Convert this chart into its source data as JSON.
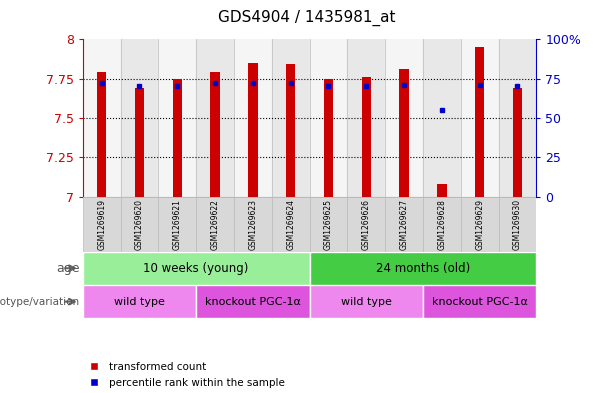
{
  "title": "GDS4904 / 1435981_at",
  "samples": [
    "GSM1269619",
    "GSM1269620",
    "GSM1269621",
    "GSM1269622",
    "GSM1269623",
    "GSM1269624",
    "GSM1269625",
    "GSM1269626",
    "GSM1269627",
    "GSM1269628",
    "GSM1269629",
    "GSM1269630"
  ],
  "red_values": [
    7.79,
    7.69,
    7.75,
    7.79,
    7.85,
    7.84,
    7.75,
    7.76,
    7.81,
    7.08,
    7.95,
    7.69
  ],
  "blue_values": [
    72,
    70,
    70,
    72,
    72,
    72,
    70,
    70,
    71,
    55,
    71,
    70
  ],
  "ymin": 7.0,
  "ymax": 8.0,
  "yticks": [
    7.0,
    7.25,
    7.5,
    7.75,
    8.0
  ],
  "ytick_labels": [
    "7",
    "7.25",
    "7.5",
    "7.75",
    "8"
  ],
  "right_yticks": [
    0,
    25,
    50,
    75,
    100
  ],
  "right_ytick_labels": [
    "0",
    "25",
    "50",
    "75",
    "100%"
  ],
  "bar_color": "#cc0000",
  "dot_color": "#0000cc",
  "age_groups": [
    {
      "label": "10 weeks (young)",
      "start": 0,
      "end": 5,
      "color": "#99ee99"
    },
    {
      "label": "24 months (old)",
      "start": 6,
      "end": 11,
      "color": "#44cc44"
    }
  ],
  "genotype_groups": [
    {
      "label": "wild type",
      "start": 0,
      "end": 2,
      "color": "#ee88ee"
    },
    {
      "label": "knockout PGC-1α",
      "start": 3,
      "end": 5,
      "color": "#dd55dd"
    },
    {
      "label": "wild type",
      "start": 6,
      "end": 8,
      "color": "#ee88ee"
    },
    {
      "label": "knockout PGC-1α",
      "start": 9,
      "end": 11,
      "color": "#dd55dd"
    }
  ],
  "legend_red": "transformed count",
  "legend_blue": "percentile rank within the sample",
  "age_label": "age",
  "genotype_label": "genotype/variation",
  "bar_width": 0.25
}
